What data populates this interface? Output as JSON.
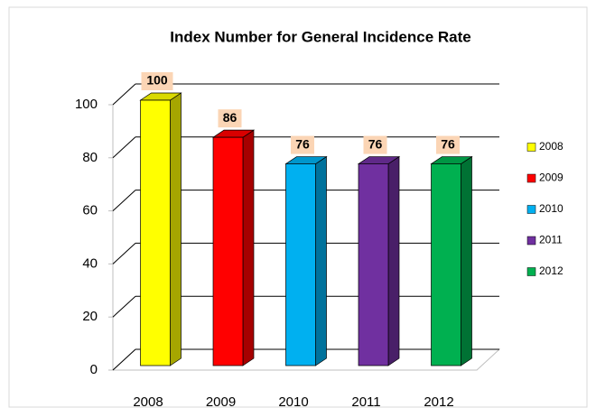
{
  "chart_data": {
    "type": "bar",
    "title": "Index Number for General Incidence Rate",
    "categories": [
      "2008",
      "2009",
      "2010",
      "2011",
      "2012"
    ],
    "values": [
      100,
      86,
      76,
      76,
      76
    ],
    "colors": [
      "#ffff00",
      "#ff0000",
      "#00b0f0",
      "#7030a0",
      "#00b050"
    ],
    "ylim": [
      0,
      100
    ],
    "yticks": [
      0,
      20,
      40,
      60,
      80,
      100
    ],
    "grid": true,
    "legend": "right"
  }
}
